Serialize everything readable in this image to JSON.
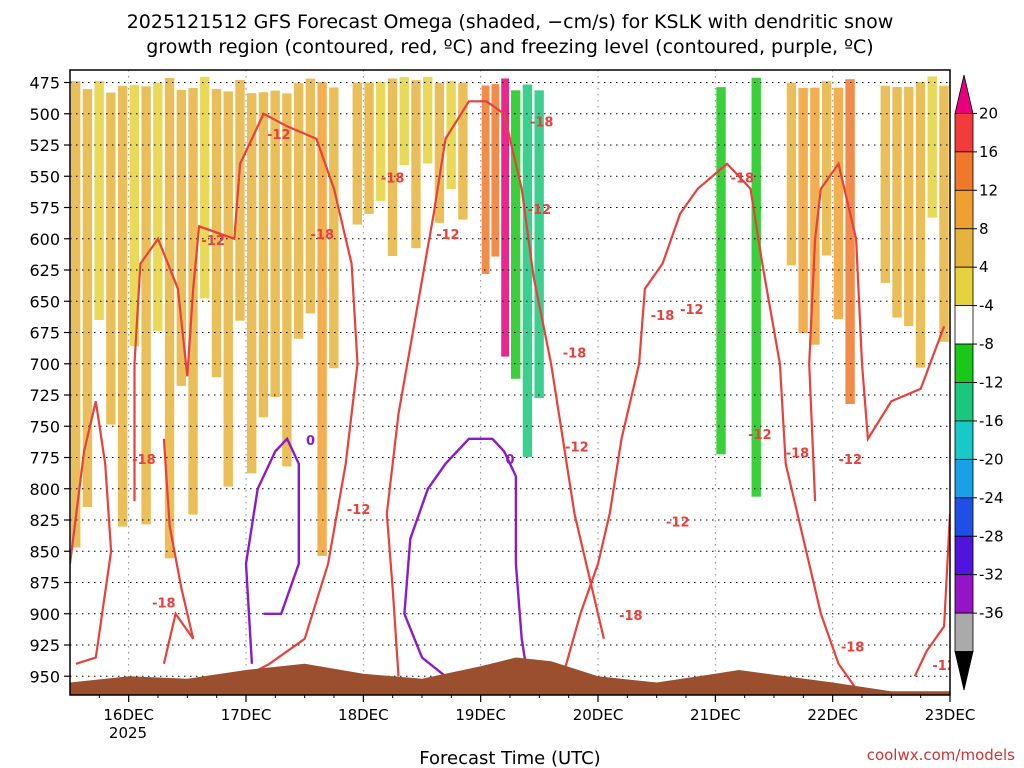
{
  "chart_data": {
    "type": "heatmap",
    "title_line1": "2025121512 GFS Forecast Omega (shaded, −cm/s) for KSLK with dendritic snow",
    "title_line2": "growth region (contoured, red, ºC) and freezing level (contoured, purple, ºC)",
    "xlabel": "Forecast Time (UTC)",
    "x_ticks": [
      "16DEC",
      "17DEC",
      "18DEC",
      "19DEC",
      "20DEC",
      "21DEC",
      "22DEC",
      "23DEC"
    ],
    "x_tick_days": [
      1,
      2,
      3,
      4,
      5,
      6,
      7,
      8
    ],
    "x_year": "2025",
    "xlim_days": [
      0.5,
      8.0
    ],
    "y_ticks": [
      "475",
      "500",
      "525",
      "550",
      "575",
      "600",
      "625",
      "650",
      "675",
      "700",
      "725",
      "750",
      "775",
      "800",
      "825",
      "850",
      "875",
      "900",
      "925",
      "950"
    ],
    "ylim_hpa": [
      465,
      965
    ],
    "grid": true,
    "colorbar": {
      "ticks": [
        "20",
        "16",
        "12",
        "8",
        "4",
        "-4",
        "-8",
        "-12",
        "-16",
        "-20",
        "-24",
        "-28",
        "-32",
        "-36"
      ],
      "colors": [
        "#e8007a",
        "#f23c3c",
        "#f0782a",
        "#f0a030",
        "#e6b43c",
        "#e6d23c",
        "#ffffff",
        "#19c819",
        "#19c87d",
        "#19c8c8",
        "#19a0e6",
        "#1e50e6",
        "#5014dc",
        "#9614c8",
        "#aaaaaa",
        "#000000"
      ]
    },
    "omega_regions": [
      {
        "name": "upward-motion-band-1",
        "x": [
          0.5,
          1.9
        ],
        "p": [
          470,
          860
        ],
        "value": 6
      },
      {
        "name": "upward-motion-band-2",
        "x": [
          1.9,
          2.8
        ],
        "p": [
          470,
          870
        ],
        "value": 8
      },
      {
        "name": "upward-motion-band-3",
        "x": [
          2.9,
          3.9
        ],
        "p": [
          470,
          620
        ],
        "value": 5
      },
      {
        "name": "upward-motion-core",
        "x": [
          4.0,
          4.25
        ],
        "p": [
          470,
          700
        ],
        "value": 18
      },
      {
        "name": "downward-motion-core",
        "x": [
          4.25,
          4.55
        ],
        "p": [
          470,
          800
        ],
        "value": -14
      },
      {
        "name": "downward-motion-band",
        "x": [
          5.9,
          6.4
        ],
        "p": [
          470,
          810
        ],
        "value": -8
      },
      {
        "name": "upward-motion-band-4",
        "x": [
          6.6,
          7.2
        ],
        "p": [
          470,
          740
        ],
        "value": 12
      },
      {
        "name": "upward-motion-band-5",
        "x": [
          7.4,
          8.0
        ],
        "p": [
          470,
          720
        ],
        "value": 6
      }
    ],
    "contour_labels_red": [
      "-18",
      "-12",
      "-18",
      "-12",
      "-18",
      "-12",
      "-18",
      "-12",
      "-18",
      "-12",
      "-18",
      "-12",
      "-18",
      "-12",
      "-18",
      "-12",
      "-18",
      "-12",
      "-18",
      "-12",
      "-18",
      "-12"
    ],
    "contour_labels_purple": [
      "0",
      "0"
    ],
    "terrain_color": "#9c4f2e",
    "contour_red_color": "#e8403c",
    "contour_purple_color": "#8a1cc8"
  },
  "credit": "coolwx.com/models"
}
